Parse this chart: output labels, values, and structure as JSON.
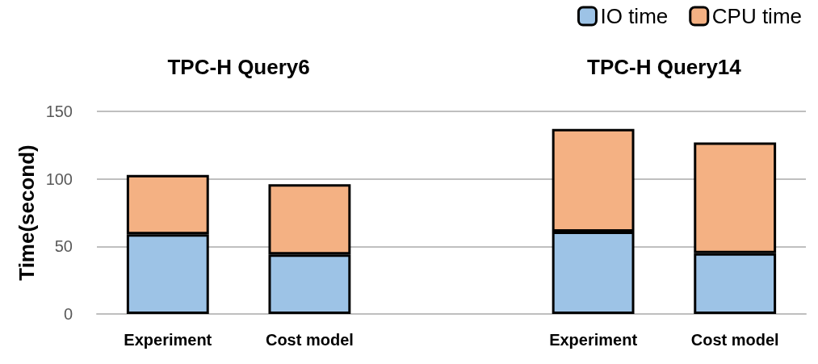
{
  "chart_data": {
    "type": "bar",
    "stacked": true,
    "ylabel": "Time(second)",
    "categories": [
      "Experiment",
      "Cost model",
      null,
      "Experiment",
      "Cost model"
    ],
    "series": [
      {
        "name": "IO time",
        "color": "#9dc3e6",
        "values": [
          59,
          44,
          null,
          61,
          45
        ]
      },
      {
        "name": "CPU time",
        "color": "#f4b183",
        "values": [
          44,
          52,
          null,
          76,
          82
        ]
      }
    ],
    "ylim": [
      0,
      150
    ],
    "yticks": [
      0,
      50,
      100,
      150
    ],
    "grid": "y",
    "legend": "top right",
    "annotations": [
      "TPC-H Query6",
      "TPC-H Query14"
    ]
  }
}
